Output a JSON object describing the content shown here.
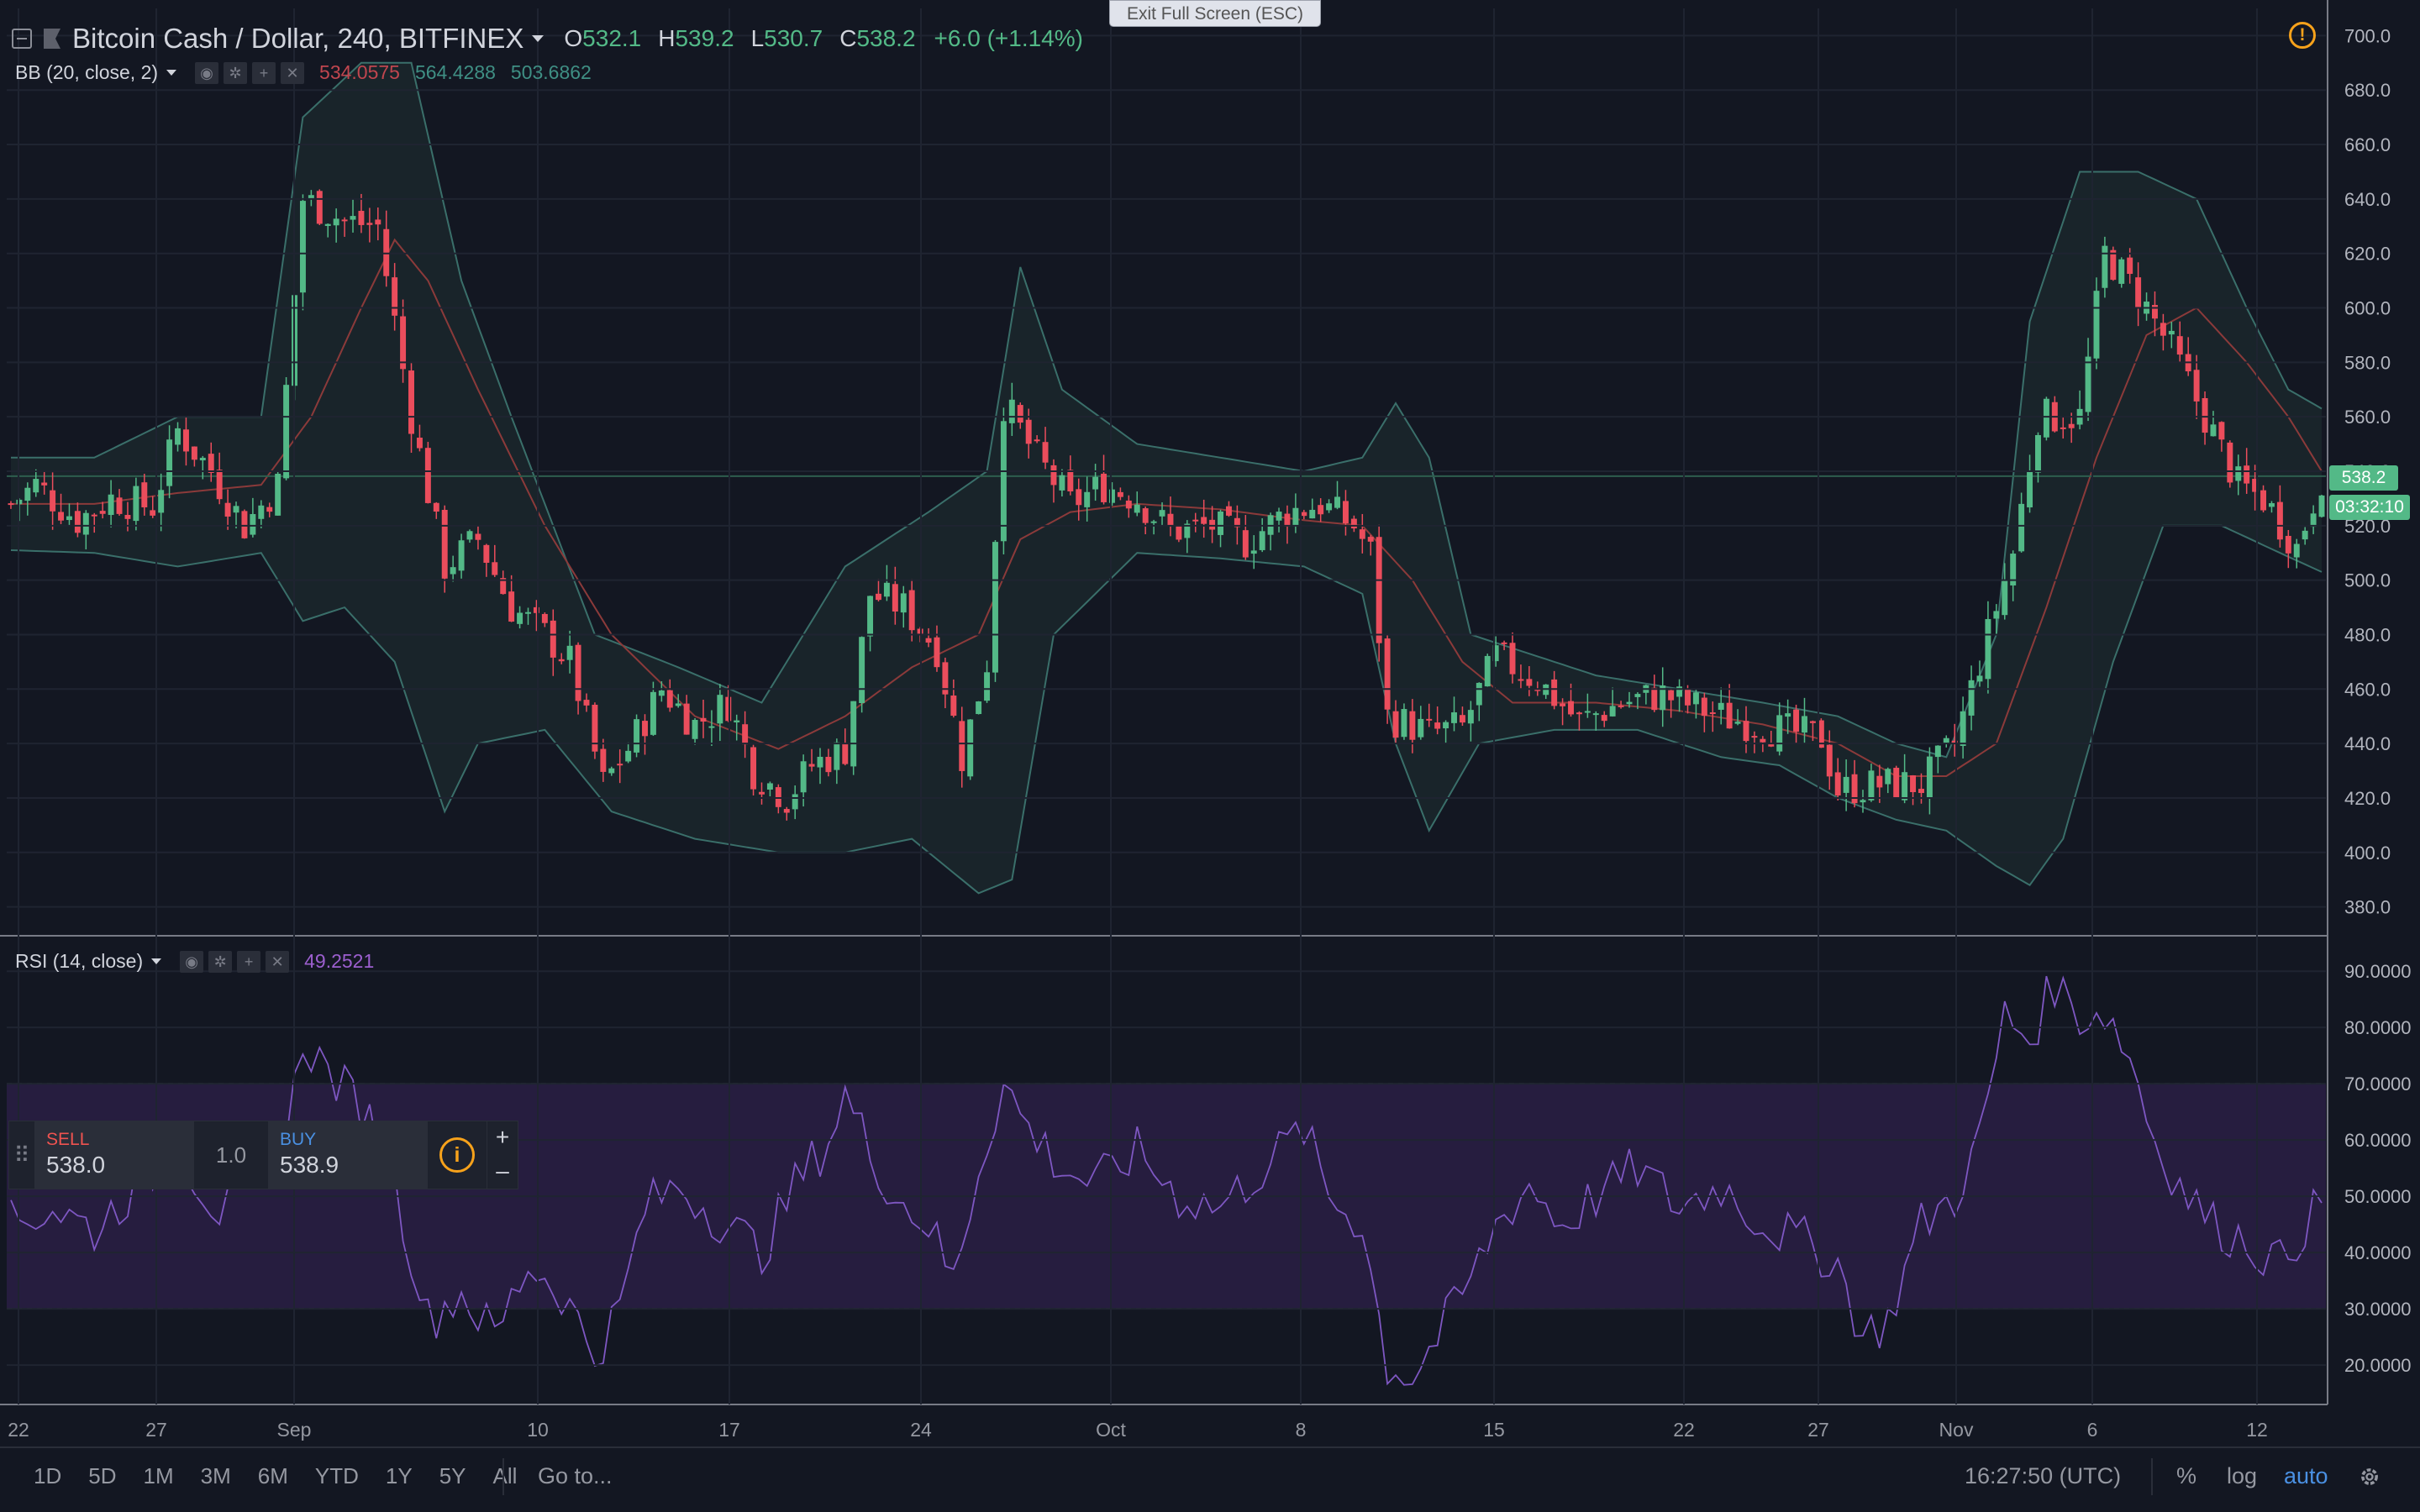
{
  "header": {
    "symbol": "Bitcoin Cash / Dollar, 240, BITFINEX",
    "ohlc": [
      {
        "label": "O",
        "value": "532.1"
      },
      {
        "label": "H",
        "value": "539.2"
      },
      {
        "label": "L",
        "value": "530.7"
      },
      {
        "label": "C",
        "value": "538.2"
      }
    ],
    "change": "+6.0 (+1.14%)",
    "exit_fullscreen": "Exit Full Screen (ESC)"
  },
  "bb_legend": {
    "name": "BB (20, close, 2)",
    "v1": "534.0575",
    "v2": "564.4288",
    "v3": "503.6862"
  },
  "rsi_legend": {
    "name": "RSI (14, close)",
    "value": "49.2521"
  },
  "price_tags": {
    "last_price": "538.2",
    "countdown": "03:32:10"
  },
  "trade_panel": {
    "sell_label": "SELL",
    "sell_price": "538.0",
    "quantity": "1.0",
    "buy_label": "BUY",
    "buy_price": "538.9",
    "plus": "+",
    "minus": "–"
  },
  "bottom_bar": {
    "ranges": [
      "1D",
      "5D",
      "1M",
      "3M",
      "6M",
      "YTD",
      "1Y",
      "5Y",
      "All"
    ],
    "goto": "Go to...",
    "clock": "16:27:50 (UTC)",
    "percent": "%",
    "log": "log",
    "auto": "auto"
  },
  "colors": {
    "up": "#53b987",
    "down": "#eb4d5c",
    "bb_band": "#3a6f6a",
    "bb_basis": "#8b3a3a",
    "rsi_line": "#7e57c2",
    "rsi_fill": "#2a1f44",
    "accent": "#4a90e2"
  },
  "chart_data": [
    {
      "type": "candlestick",
      "title": "Bitcoin Cash / Dollar, 240, BITFINEX",
      "x_tick_labels": [
        "22",
        "27",
        "Sep",
        "10",
        "17",
        "24",
        "Oct",
        "8",
        "15",
        "22",
        "27",
        "Nov",
        "6",
        "12"
      ],
      "y_tick_labels": [
        "700.0",
        "680.0",
        "660.0",
        "640.0",
        "620.0",
        "600.0",
        "580.0",
        "560.0",
        "540.0",
        "520.0",
        "500.0",
        "480.0",
        "460.0",
        "440.0",
        "420.0",
        "400.0",
        "380.0"
      ],
      "ylim": [
        370,
        710
      ],
      "close_path": [
        [
          0,
          528
        ],
        [
          3,
          535
        ],
        [
          8,
          522
        ],
        [
          12,
          530
        ],
        [
          17,
          527
        ],
        [
          20,
          555
        ],
        [
          24,
          540
        ],
        [
          28,
          520
        ],
        [
          32,
          535
        ],
        [
          35,
          640
        ],
        [
          40,
          632
        ],
        [
          44,
          630
        ],
        [
          48,
          560
        ],
        [
          52,
          505
        ],
        [
          56,
          515
        ],
        [
          60,
          490
        ],
        [
          64,
          480
        ],
        [
          67,
          470
        ],
        [
          71,
          425
        ],
        [
          74,
          438
        ],
        [
          78,
          460
        ],
        [
          82,
          447
        ],
        [
          86,
          455
        ],
        [
          89,
          430
        ],
        [
          93,
          420
        ],
        [
          96,
          432
        ],
        [
          100,
          438
        ],
        [
          103,
          495
        ],
        [
          107,
          490
        ],
        [
          111,
          475
        ],
        [
          114,
          435
        ],
        [
          117,
          470
        ],
        [
          119,
          565
        ],
        [
          123,
          545
        ],
        [
          127,
          528
        ],
        [
          131,
          535
        ],
        [
          135,
          530
        ],
        [
          139,
          518
        ],
        [
          144,
          520
        ],
        [
          148,
          514
        ],
        [
          153,
          525
        ],
        [
          157,
          528
        ],
        [
          161,
          520
        ],
        [
          163,
          510
        ],
        [
          165,
          450
        ],
        [
          170,
          444
        ],
        [
          174,
          446
        ],
        [
          178,
          472
        ],
        [
          183,
          463
        ],
        [
          188,
          448
        ],
        [
          193,
          455
        ],
        [
          198,
          458
        ],
        [
          205,
          450
        ],
        [
          212,
          445
        ],
        [
          217,
          442
        ],
        [
          219,
          423
        ],
        [
          224,
          425
        ],
        [
          229,
          425
        ],
        [
          233,
          440
        ],
        [
          236,
          470
        ],
        [
          240,
          510
        ],
        [
          243,
          560
        ],
        [
          248,
          560
        ],
        [
          251,
          620
        ],
        [
          255,
          605
        ],
        [
          259,
          585
        ],
        [
          263,
          560
        ],
        [
          267,
          535
        ],
        [
          270,
          530
        ],
        [
          274,
          512
        ],
        [
          277,
          538
        ]
      ],
      "bb_upper": [
        [
          0,
          545
        ],
        [
          10,
          545
        ],
        [
          20,
          560
        ],
        [
          30,
          560
        ],
        [
          35,
          670
        ],
        [
          42,
          690
        ],
        [
          48,
          690
        ],
        [
          54,
          610
        ],
        [
          60,
          560
        ],
        [
          70,
          480
        ],
        [
          80,
          468
        ],
        [
          90,
          455
        ],
        [
          100,
          505
        ],
        [
          110,
          525
        ],
        [
          117,
          540
        ],
        [
          121,
          615
        ],
        [
          126,
          570
        ],
        [
          135,
          550
        ],
        [
          145,
          545
        ],
        [
          155,
          540
        ],
        [
          162,
          545
        ],
        [
          166,
          565
        ],
        [
          170,
          545
        ],
        [
          175,
          480
        ],
        [
          180,
          475
        ],
        [
          190,
          465
        ],
        [
          200,
          460
        ],
        [
          210,
          455
        ],
        [
          219,
          450
        ],
        [
          226,
          440
        ],
        [
          232,
          435
        ],
        [
          238,
          480
        ],
        [
          242,
          595
        ],
        [
          248,
          650
        ],
        [
          255,
          650
        ],
        [
          262,
          640
        ],
        [
          268,
          600
        ],
        [
          273,
          570
        ],
        [
          277,
          563
        ]
      ],
      "bb_basis": [
        [
          0,
          528
        ],
        [
          10,
          528
        ],
        [
          20,
          532
        ],
        [
          30,
          535
        ],
        [
          36,
          560
        ],
        [
          42,
          600
        ],
        [
          46,
          625
        ],
        [
          50,
          610
        ],
        [
          56,
          570
        ],
        [
          64,
          520
        ],
        [
          72,
          480
        ],
        [
          82,
          450
        ],
        [
          92,
          438
        ],
        [
          100,
          450
        ],
        [
          108,
          468
        ],
        [
          116,
          480
        ],
        [
          121,
          515
        ],
        [
          127,
          525
        ],
        [
          135,
          528
        ],
        [
          145,
          526
        ],
        [
          155,
          522
        ],
        [
          162,
          520
        ],
        [
          168,
          500
        ],
        [
          174,
          470
        ],
        [
          180,
          455
        ],
        [
          190,
          455
        ],
        [
          200,
          452
        ],
        [
          210,
          447
        ],
        [
          219,
          440
        ],
        [
          226,
          428
        ],
        [
          232,
          428
        ],
        [
          238,
          440
        ],
        [
          244,
          490
        ],
        [
          250,
          545
        ],
        [
          256,
          590
        ],
        [
          262,
          600
        ],
        [
          268,
          580
        ],
        [
          273,
          560
        ],
        [
          277,
          540
        ]
      ],
      "bb_lower": [
        [
          0,
          511
        ],
        [
          10,
          510
        ],
        [
          20,
          505
        ],
        [
          30,
          510
        ],
        [
          35,
          485
        ],
        [
          40,
          490
        ],
        [
          46,
          470
        ],
        [
          52,
          415
        ],
        [
          56,
          440
        ],
        [
          64,
          445
        ],
        [
          72,
          415
        ],
        [
          82,
          405
        ],
        [
          92,
          400
        ],
        [
          100,
          400
        ],
        [
          108,
          405
        ],
        [
          116,
          385
        ],
        [
          120,
          390
        ],
        [
          125,
          480
        ],
        [
          135,
          510
        ],
        [
          145,
          508
        ],
        [
          155,
          505
        ],
        [
          162,
          495
        ],
        [
          166,
          440
        ],
        [
          170,
          408
        ],
        [
          176,
          440
        ],
        [
          185,
          445
        ],
        [
          195,
          445
        ],
        [
          205,
          435
        ],
        [
          212,
          432
        ],
        [
          219,
          420
        ],
        [
          226,
          412
        ],
        [
          232,
          408
        ],
        [
          238,
          395
        ],
        [
          242,
          388
        ],
        [
          246,
          405
        ],
        [
          252,
          470
        ],
        [
          258,
          520
        ],
        [
          265,
          520
        ],
        [
          272,
          510
        ],
        [
          277,
          503
        ]
      ]
    },
    {
      "type": "line",
      "title": "RSI (14, close)",
      "y_tick_labels": [
        "90.0000",
        "80.0000",
        "70.0000",
        "60.0000",
        "50.0000",
        "40.0000",
        "30.0000",
        "20.0000"
      ],
      "ylim": [
        13,
        96
      ],
      "bands": [
        30,
        70
      ],
      "values": [
        [
          0,
          45
        ],
        [
          5,
          48
        ],
        [
          10,
          44
        ],
        [
          15,
          52
        ],
        [
          20,
          58
        ],
        [
          25,
          47
        ],
        [
          30,
          50
        ],
        [
          33,
          60
        ],
        [
          35,
          78
        ],
        [
          38,
          72
        ],
        [
          42,
          66
        ],
        [
          45,
          58
        ],
        [
          48,
          40
        ],
        [
          50,
          28
        ],
        [
          54,
          33
        ],
        [
          58,
          25
        ],
        [
          62,
          38
        ],
        [
          66,
          33
        ],
        [
          70,
          22
        ],
        [
          73,
          30
        ],
        [
          76,
          48
        ],
        [
          80,
          52
        ],
        [
          85,
          46
        ],
        [
          90,
          40
        ],
        [
          94,
          52
        ],
        [
          98,
          60
        ],
        [
          100,
          68
        ],
        [
          103,
          58
        ],
        [
          106,
          50
        ],
        [
          110,
          45
        ],
        [
          113,
          35
        ],
        [
          116,
          55
        ],
        [
          119,
          70
        ],
        [
          122,
          62
        ],
        [
          126,
          55
        ],
        [
          130,
          52
        ],
        [
          135,
          58
        ],
        [
          140,
          50
        ],
        [
          145,
          48
        ],
        [
          150,
          55
        ],
        [
          155,
          62
        ],
        [
          158,
          50
        ],
        [
          162,
          45
        ],
        [
          165,
          20
        ],
        [
          168,
          18
        ],
        [
          171,
          25
        ],
        [
          175,
          35
        ],
        [
          178,
          45
        ],
        [
          182,
          52
        ],
        [
          186,
          45
        ],
        [
          190,
          50
        ],
        [
          195,
          55
        ],
        [
          200,
          48
        ],
        [
          205,
          52
        ],
        [
          210,
          45
        ],
        [
          215,
          42
        ],
        [
          219,
          38
        ],
        [
          222,
          25
        ],
        [
          225,
          28
        ],
        [
          229,
          45
        ],
        [
          233,
          50
        ],
        [
          236,
          60
        ],
        [
          239,
          82
        ],
        [
          242,
          78
        ],
        [
          245,
          88
        ],
        [
          248,
          82
        ],
        [
          251,
          83
        ],
        [
          254,
          75
        ],
        [
          257,
          60
        ],
        [
          260,
          52
        ],
        [
          264,
          45
        ],
        [
          268,
          42
        ],
        [
          272,
          38
        ],
        [
          275,
          45
        ],
        [
          277,
          49
        ]
      ]
    }
  ]
}
